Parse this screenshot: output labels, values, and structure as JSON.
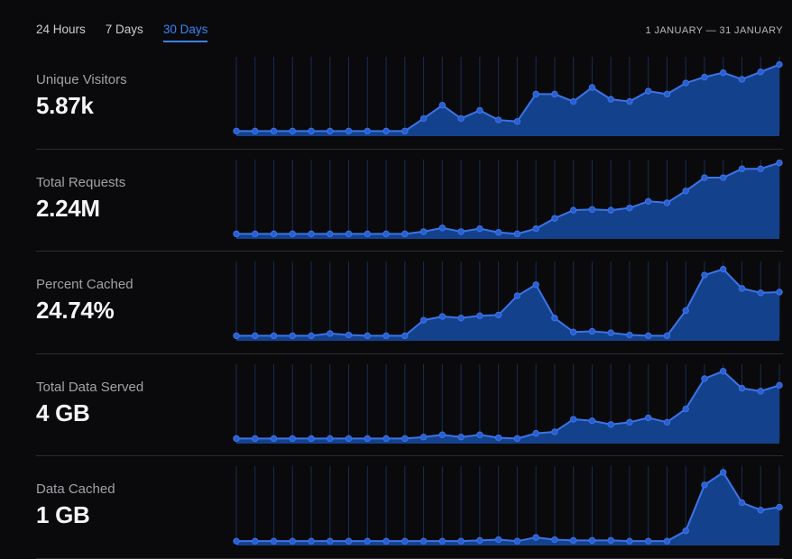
{
  "header": {
    "tabs": [
      {
        "label": "24 Hours",
        "active": false
      },
      {
        "label": "7 Days",
        "active": false
      },
      {
        "label": "30 Days",
        "active": true
      }
    ],
    "date_range": "1 JANUARY — 31 JANUARY"
  },
  "colors": {
    "background": "#0a0a0c",
    "accent": "#3b82f6",
    "divider": "#2c2c30",
    "label": "#a1a1a7",
    "value": "#f5f5f6",
    "date": "#b8b8bc",
    "tab_inactive": "#cccccf",
    "grid_line": "#172d54",
    "area_fill": "#14418c",
    "line": "#3a74e8",
    "dot": "#2a5ecf"
  },
  "chart_data": [
    {
      "type": "area",
      "title": "Unique Visitors",
      "total": "5.87k",
      "x_range": "1 January – 31 January (30 points)",
      "y_scale": "relative height 0-100 (no axis labels shown)",
      "legend": "none",
      "grid": "vertical lines only",
      "points": [
        2,
        2,
        2,
        2,
        2,
        2,
        2,
        2,
        2,
        2,
        19,
        37,
        19,
        30,
        17,
        15,
        52,
        52,
        42,
        61,
        45,
        42,
        56,
        52,
        67,
        75,
        81,
        72,
        82,
        92
      ]
    },
    {
      "type": "area",
      "title": "Total Requests",
      "total": "2.24M",
      "x_range": "1 January – 31 January (30 points)",
      "y_scale": "relative height 0-100 (no axis labels shown)",
      "legend": "none",
      "grid": "vertical lines only",
      "points": [
        2,
        2,
        2,
        2,
        2,
        2,
        2,
        2,
        2,
        2,
        5,
        10,
        5,
        9,
        4,
        2,
        9,
        23,
        34,
        35,
        34,
        37,
        46,
        44,
        60,
        78,
        78,
        90,
        90,
        98
      ]
    },
    {
      "type": "area",
      "title": "Percent Cached",
      "total": "24.74%",
      "x_range": "1 January – 31 January (30 points)",
      "y_scale": "relative height 0-100 (no axis labels shown)",
      "legend": "none",
      "grid": "vertical lines only",
      "points": [
        2,
        2,
        2,
        2,
        2,
        5,
        3,
        2,
        2,
        2,
        23,
        28,
        26,
        29,
        30,
        56,
        71,
        26,
        7,
        8,
        6,
        3,
        2,
        2,
        36,
        84,
        92,
        66,
        60,
        61
      ]
    },
    {
      "type": "area",
      "title": "Total Data Served",
      "total": "4 GB",
      "x_range": "1 January – 31 January (30 points)",
      "y_scale": "relative height 0-100 (no axis labels shown)",
      "legend": "none",
      "grid": "vertical lines only",
      "points": [
        2,
        2,
        2,
        2,
        2,
        2,
        2,
        2,
        2,
        2,
        4,
        7,
        4,
        7,
        3,
        2,
        9,
        11,
        28,
        26,
        21,
        24,
        30,
        24,
        42,
        83,
        93,
        70,
        66,
        74
      ]
    },
    {
      "type": "area",
      "title": "Data Cached",
      "total": "1 GB",
      "x_range": "1 January – 31 January (30 points)",
      "y_scale": "relative height 0-100 (no axis labels shown)",
      "legend": "none",
      "grid": "vertical lines only",
      "points": [
        1,
        1,
        1,
        1,
        1,
        1,
        1,
        1,
        1,
        1,
        1,
        1,
        1,
        2,
        3,
        1,
        6,
        3,
        2,
        2,
        2,
        1,
        1,
        1,
        15,
        77,
        94,
        53,
        43,
        47
      ]
    }
  ]
}
